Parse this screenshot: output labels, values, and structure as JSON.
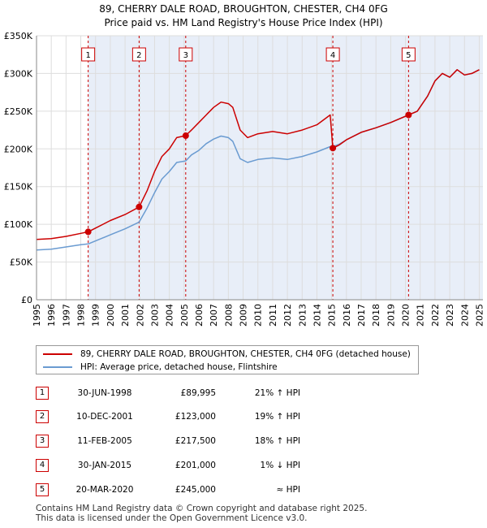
{
  "title_line1": "89, CHERRY DALE ROAD, BROUGHTON, CHESTER, CH4 0FG",
  "title_line2": "Price paid vs. HM Land Registry's House Price Index (HPI)",
  "legend": {
    "property": "89, CHERRY DALE ROAD, BROUGHTON, CHESTER, CH4 0FG (detached house)",
    "hpi": "HPI: Average price, detached house, Flintshire"
  },
  "colors": {
    "property": "#cc0000",
    "hpi": "#6a9bd1",
    "band": "#e8eef8",
    "grid": "#dddddd",
    "vline": "#cc0000"
  },
  "sales": [
    {
      "n": "1",
      "date": "30-JUN-1998",
      "price": "£89,995",
      "hpi": "21% ↑ HPI"
    },
    {
      "n": "2",
      "date": "10-DEC-2001",
      "price": "£123,000",
      "hpi": "19% ↑ HPI"
    },
    {
      "n": "3",
      "date": "11-FEB-2005",
      "price": "£217,500",
      "hpi": "18% ↑ HPI"
    },
    {
      "n": "4",
      "date": "30-JAN-2015",
      "price": "£201,000",
      "hpi": "1% ↓ HPI"
    },
    {
      "n": "5",
      "date": "20-MAR-2020",
      "price": "£245,000",
      "hpi": "≈ HPI"
    }
  ],
  "footer": {
    "line1": "Contains HM Land Registry data © Crown copyright and database right 2025.",
    "line2": "This data is licensed under the Open Government Licence v3.0."
  },
  "chart_data": {
    "type": "line",
    "title": "Price paid vs. HM Land Registry's House Price Index (HPI)",
    "xlim": [
      1995,
      2025.25
    ],
    "ylim": [
      0,
      350000
    ],
    "y_ticks": [
      0,
      50000,
      100000,
      150000,
      200000,
      250000,
      300000,
      350000
    ],
    "y_tick_labels": [
      "£0",
      "£50K",
      "£100K",
      "£150K",
      "£200K",
      "£250K",
      "£300K",
      "£350K"
    ],
    "x_ticks": [
      1995,
      1996,
      1997,
      1998,
      1999,
      2000,
      2001,
      2002,
      2003,
      2004,
      2005,
      2006,
      2007,
      2008,
      2009,
      2010,
      2011,
      2012,
      2013,
      2014,
      2015,
      2016,
      2017,
      2018,
      2019,
      2020,
      2021,
      2022,
      2023,
      2024,
      2025
    ],
    "grid": true,
    "legend_position": "below",
    "series": [
      {
        "name": "89, CHERRY DALE ROAD, BROUGHTON, CHESTER, CH4 0FG (detached house)",
        "x": [
          1995.0,
          1996.0,
          1997.0,
          1998.0,
          1998.5,
          1999.0,
          2000.0,
          2001.0,
          2001.95,
          2002.5,
          2003.0,
          2003.5,
          2004.0,
          2004.5,
          2005.11,
          2005.5,
          2006.0,
          2006.5,
          2007.0,
          2007.5,
          2008.0,
          2008.3,
          2008.8,
          2009.3,
          2010.0,
          2011.0,
          2012.0,
          2013.0,
          2014.0,
          2014.9,
          2015.08,
          2015.5,
          2016.0,
          2017.0,
          2018.0,
          2019.0,
          2020.21,
          2020.8,
          2021.5,
          2022.0,
          2022.5,
          2023.0,
          2023.5,
          2024.0,
          2024.5,
          2025.0
        ],
        "values": [
          80000,
          81000,
          84000,
          88000,
          89995,
          95000,
          105000,
          113000,
          123000,
          145000,
          170000,
          190000,
          200000,
          215000,
          217500,
          225000,
          235000,
          245000,
          255000,
          262000,
          260000,
          255000,
          225000,
          215000,
          220000,
          223000,
          220000,
          225000,
          232000,
          245000,
          201000,
          205000,
          212000,
          222000,
          228000,
          235000,
          245000,
          250000,
          270000,
          290000,
          300000,
          295000,
          305000,
          298000,
          300000,
          305000
        ]
      },
      {
        "name": "HPI: Average price, detached house, Flintshire",
        "x": [
          1995.0,
          1996.0,
          1997.0,
          1998.0,
          1998.5,
          1999.0,
          2000.0,
          2001.0,
          2001.95,
          2002.5,
          2003.0,
          2003.5,
          2004.0,
          2004.5,
          2005.11,
          2005.5,
          2006.0,
          2006.5,
          2007.0,
          2007.5,
          2008.0,
          2008.3,
          2008.8,
          2009.3,
          2010.0,
          2011.0,
          2012.0,
          2013.0,
          2014.0,
          2014.9,
          2015.08,
          2015.5,
          2016.0,
          2017.0,
          2018.0,
          2019.0,
          2020.21,
          2020.8,
          2021.5,
          2022.0,
          2022.5,
          2023.0,
          2023.5,
          2024.0,
          2024.5,
          2025.0
        ],
        "values": [
          66000,
          67000,
          70000,
          73000,
          74000,
          78000,
          86000,
          94000,
          103000,
          122000,
          142000,
          160000,
          170000,
          182000,
          184000,
          192000,
          198000,
          207000,
          213000,
          217000,
          215000,
          210000,
          187000,
          182000,
          186000,
          188000,
          186000,
          190000,
          196000,
          203000,
          203000,
          206000,
          212000,
          222000,
          228000,
          235000,
          245000,
          250000,
          270000,
          290000,
          300000,
          295000,
          305000,
          298000,
          300000,
          305000
        ]
      }
    ],
    "sale_markers": [
      {
        "label": "1",
        "x": 1998.5,
        "value": 89995
      },
      {
        "label": "2",
        "x": 2001.95,
        "value": 123000
      },
      {
        "label": "3",
        "x": 2005.11,
        "value": 217500
      },
      {
        "label": "4",
        "x": 2015.08,
        "value": 201000
      },
      {
        "label": "5",
        "x": 2020.21,
        "value": 245000
      }
    ]
  }
}
